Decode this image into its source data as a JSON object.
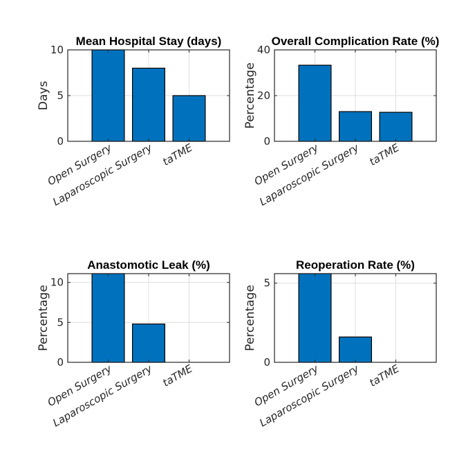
{
  "figure": {
    "suptitle": "",
    "bar_color": "#0072BD",
    "edge_color": "#000000",
    "grid_color": "#DFDFDF",
    "axis_color": "#262626"
  },
  "chart_data": [
    {
      "type": "bar",
      "title": "Mean Hospital Stay (days)",
      "xlabel": "",
      "ylabel": "Days",
      "categories": [
        "Open Surgery",
        "Laparoscopic Surgery",
        "taTME"
      ],
      "values": [
        10,
        8,
        5
      ],
      "ylim": [
        0,
        10
      ],
      "yticks": [
        0,
        5,
        10
      ],
      "grid": true
    },
    {
      "type": "bar",
      "title": "Overall Complication Rate (%)",
      "xlabel": "",
      "ylabel": "Percentage",
      "categories": [
        "Open Surgery",
        "Laparoscopic Surgery",
        "taTME"
      ],
      "values": [
        33.3,
        13,
        12.7
      ],
      "ylim": [
        0,
        40
      ],
      "yticks": [
        0,
        20,
        40
      ],
      "grid": true
    },
    {
      "type": "bar",
      "title": "Anastomotic Leak (%)",
      "xlabel": "",
      "ylabel": "Percentage",
      "categories": [
        "Open Surgery",
        "Laparoscopic Surgery",
        "taTME"
      ],
      "values": [
        11.1,
        4.8,
        0
      ],
      "ylim": [
        0,
        11.1
      ],
      "yticks": [
        0,
        5,
        10
      ],
      "grid": true
    },
    {
      "type": "bar",
      "title": "Reoperation Rate (%)",
      "xlabel": "",
      "ylabel": "Percentage",
      "categories": [
        "Open Surgery",
        "Laparoscopic Surgery",
        "taTME"
      ],
      "values": [
        5.6,
        1.6,
        0
      ],
      "ylim": [
        0,
        5.6
      ],
      "yticks": [
        0,
        5
      ],
      "grid": true
    }
  ]
}
